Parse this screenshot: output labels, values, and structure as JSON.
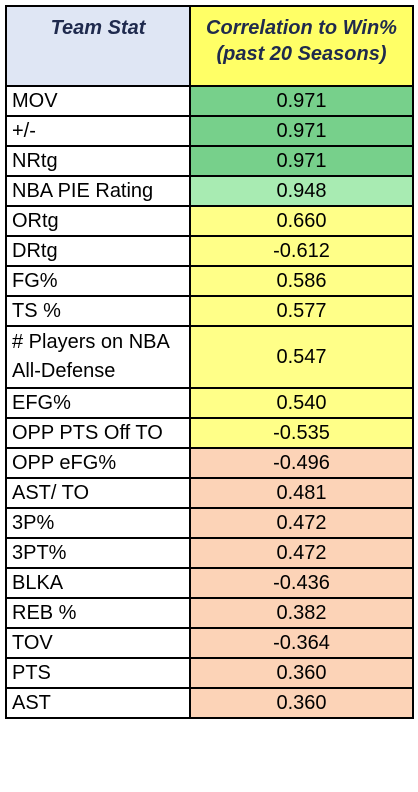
{
  "header": {
    "stat_col": "Team Stat",
    "corr_col_line1": "Correlation to Win%",
    "corr_col_line2": "(past 20 Seasons)"
  },
  "colors": {
    "strong": "#77d08b",
    "high": "#a8ebb2",
    "moderate": "#ffff88",
    "low": "#fcd3b7"
  },
  "rows": [
    {
      "stat": "MOV",
      "value": "0.971",
      "band": "strong"
    },
    {
      "stat": "+/-",
      "value": "0.971",
      "band": "strong"
    },
    {
      "stat": "NRtg",
      "value": "0.971",
      "band": "strong"
    },
    {
      "stat": "NBA PIE Rating",
      "value": "0.948",
      "band": "high"
    },
    {
      "stat": "ORtg",
      "value": "0.660",
      "band": "moderate"
    },
    {
      "stat": "DRtg",
      "value": "-0.612",
      "band": "moderate"
    },
    {
      "stat": "FG%",
      "value": "0.586",
      "band": "moderate"
    },
    {
      "stat": "TS %",
      "value": "0.577",
      "band": "moderate"
    },
    {
      "stat_line1": "# Players on NBA",
      "stat_line2": "All-Defense",
      "value": "0.547",
      "band": "moderate"
    },
    {
      "stat": "EFG%",
      "value": "0.540",
      "band": "moderate"
    },
    {
      "stat": "OPP PTS Off TO",
      "value": "-0.535",
      "band": "moderate"
    },
    {
      "stat": "OPP eFG%",
      "value": "-0.496",
      "band": "low"
    },
    {
      "stat": "AST/ TO",
      "value": "0.481",
      "band": "low"
    },
    {
      "stat": "3P%",
      "value": "0.472",
      "band": "low"
    },
    {
      "stat": "3PT%",
      "value": "0.472",
      "band": "low"
    },
    {
      "stat": "BLKA",
      "value": "-0.436",
      "band": "low"
    },
    {
      "stat": "REB %",
      "value": "0.382",
      "band": "low"
    },
    {
      "stat": "TOV",
      "value": "-0.364",
      "band": "low"
    },
    {
      "stat": "PTS",
      "value": "0.360",
      "band": "low"
    },
    {
      "stat": "AST",
      "value": "0.360",
      "band": "low"
    }
  ]
}
